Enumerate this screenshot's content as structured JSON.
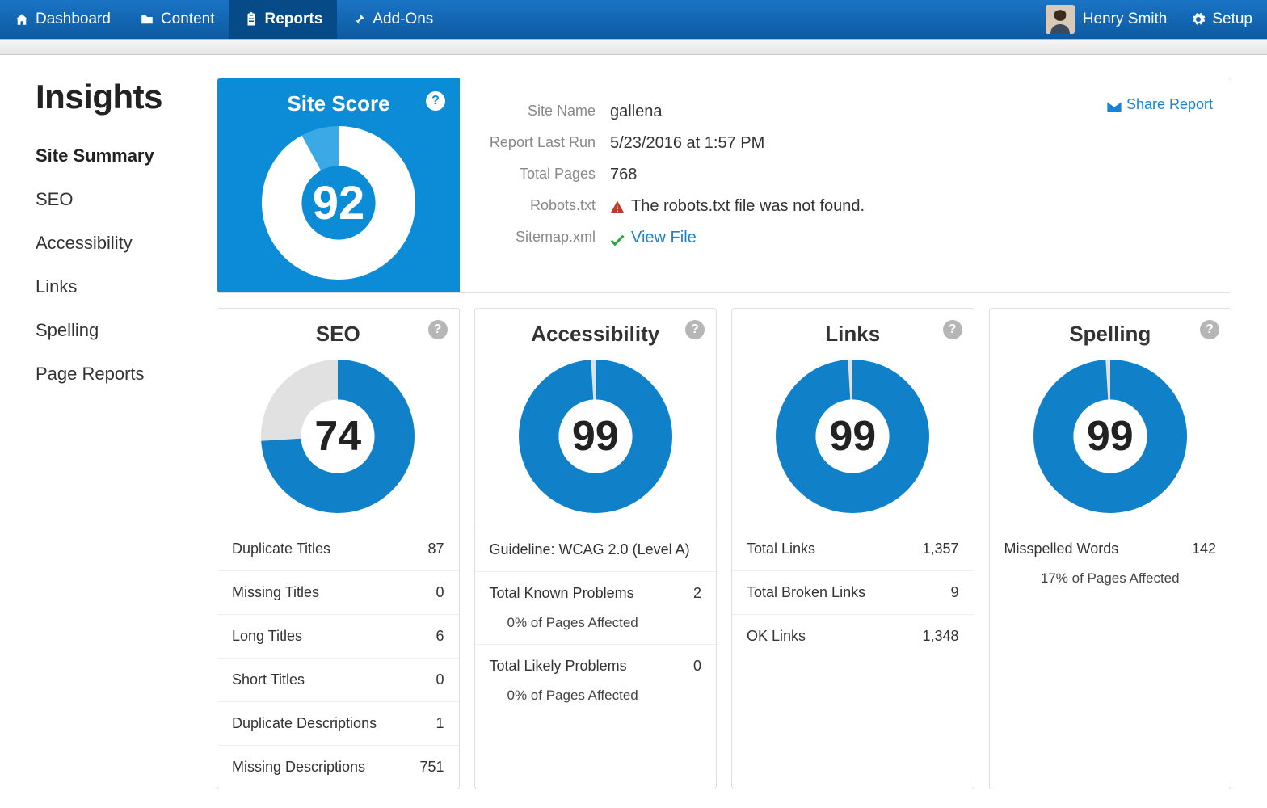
{
  "nav": {
    "dashboard": "Dashboard",
    "content": "Content",
    "reports": "Reports",
    "addons": "Add-Ons",
    "setup": "Setup"
  },
  "user": {
    "name": "Henry Smith"
  },
  "sidebar": {
    "title": "Insights",
    "items": [
      {
        "label": "Site Summary",
        "active": true
      },
      {
        "label": "SEO"
      },
      {
        "label": "Accessibility"
      },
      {
        "label": "Links"
      },
      {
        "label": "Spelling"
      },
      {
        "label": "Page Reports"
      }
    ]
  },
  "site_score": {
    "title": "Site Score",
    "value": 92,
    "donut": {
      "percent": 92,
      "ring_color": "#ffffff",
      "track_color": "#3ba9e6",
      "stroke": 26
    }
  },
  "summary": {
    "share_label": "Share Report",
    "rows": {
      "site_name": {
        "label": "Site Name",
        "value": "gallena"
      },
      "last_run": {
        "label": "Report Last Run",
        "value": "5/23/2016 at 1:57 PM"
      },
      "total_pages": {
        "label": "Total Pages",
        "value": "768"
      },
      "robots": {
        "label": "Robots.txt",
        "value": "The robots.txt file was not found.",
        "warn_color": "#c0392b"
      },
      "sitemap": {
        "label": "Sitemap.xml",
        "link": "View File",
        "check_color": "#2aa745"
      }
    }
  },
  "cards": {
    "seo": {
      "title": "SEO",
      "score": 74,
      "donut": {
        "percent": 74,
        "ring_color": "#1081c8",
        "track_color": "#e1e1e1",
        "stroke": 26
      },
      "stats": [
        {
          "label": "Duplicate Titles",
          "value": "87"
        },
        {
          "label": "Missing Titles",
          "value": "0"
        },
        {
          "label": "Long Titles",
          "value": "6"
        },
        {
          "label": "Short Titles",
          "value": "0"
        },
        {
          "label": "Duplicate Descriptions",
          "value": "1"
        },
        {
          "label": "Missing Descriptions",
          "value": "751"
        }
      ]
    },
    "accessibility": {
      "title": "Accessibility",
      "score": 99,
      "donut": {
        "percent": 99,
        "ring_color": "#1081c8",
        "track_color": "#e1e1e1",
        "stroke": 26
      },
      "guideline": "Guideline: WCAG 2.0 (Level A)",
      "groups": [
        {
          "label": "Total Known Problems",
          "value": "2",
          "sub": "0% of Pages Affected"
        },
        {
          "label": "Total Likely Problems",
          "value": "0",
          "sub": "0% of Pages Affected"
        }
      ]
    },
    "links": {
      "title": "Links",
      "score": 99,
      "donut": {
        "percent": 99,
        "ring_color": "#1081c8",
        "track_color": "#e1e1e1",
        "stroke": 26
      },
      "stats": [
        {
          "label": "Total Links",
          "value": "1,357"
        },
        {
          "label": "Total Broken Links",
          "value": "9"
        },
        {
          "label": "OK Links",
          "value": "1,348"
        }
      ]
    },
    "spelling": {
      "title": "Spelling",
      "score": 99,
      "donut": {
        "percent": 99,
        "ring_color": "#1081c8",
        "track_color": "#e1e1e1",
        "stroke": 26
      },
      "stats": [
        {
          "label": "Misspelled Words",
          "value": "142"
        }
      ],
      "footer": "17% of Pages Affected"
    }
  }
}
